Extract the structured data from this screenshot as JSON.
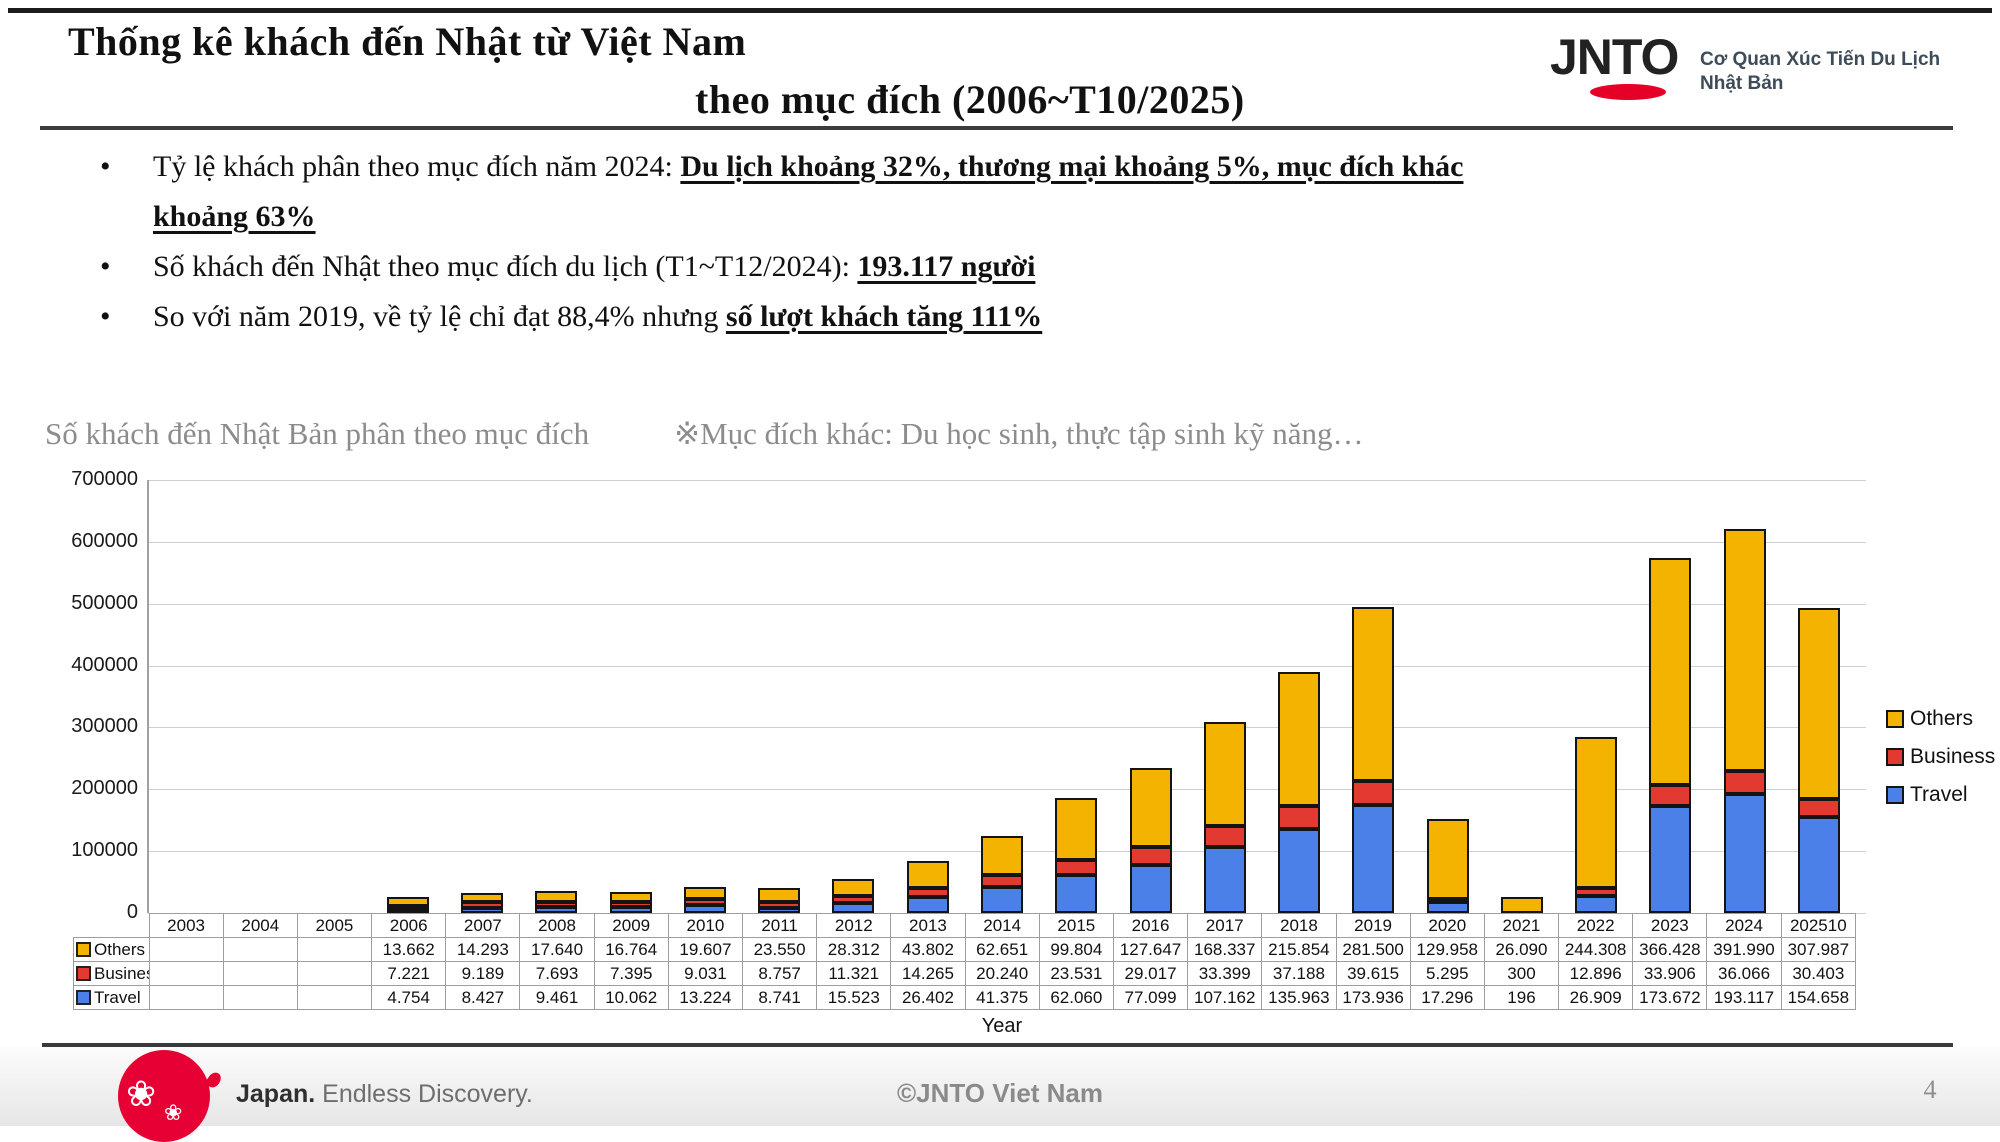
{
  "header": {
    "title_line1": "Thống kê khách đến Nhật từ Việt Nam",
    "title_line2": "theo mục đích (2006~T10/2025)",
    "logo_text": "JNTO",
    "logo_tagline": "Cơ Quan Xúc Tiến Du Lịch Nhật Bản"
  },
  "bullets": [
    {
      "segments": [
        {
          "text": "Tỷ lệ khách phân theo mục đích năm 2024: ",
          "style": "normal"
        },
        {
          "text": "Du lịch khoảng 32%, thương mại khoảng 5%, mục đích khác khoảng 63%",
          "style": "bold-underline"
        }
      ]
    },
    {
      "segments": [
        {
          "text": "Số khách đến Nhật theo mục đích du lịch (T1~T12/2024): ",
          "style": "normal"
        },
        {
          "text": "193.117 người",
          "style": "bold-underline"
        }
      ]
    },
    {
      "segments": [
        {
          "text": "So với năm 2019, về tỷ lệ chỉ đạt 88,4% nhưng ",
          "style": "normal"
        },
        {
          "text": "số lượt khách tăng 111%",
          "style": "bold-underline"
        }
      ]
    }
  ],
  "chart_data": {
    "type": "bar",
    "stacked": true,
    "title": "Số khách đến Nhật Bản phân theo mục đích",
    "note": "※Mục đích khác: Du học sinh, thực tập sinh kỹ năng…",
    "xlabel": "Year",
    "ylabel": "",
    "ylim": [
      0,
      700000
    ],
    "yticks": [
      "0",
      "100000",
      "200000",
      "300000",
      "400000",
      "500000",
      "600000",
      "700000"
    ],
    "grid": true,
    "legend_position": "right",
    "categories": [
      "2003",
      "2004",
      "2005",
      "2006",
      "2007",
      "2008",
      "2009",
      "2010",
      "2011",
      "2012",
      "2013",
      "2014",
      "2015",
      "2016",
      "2017",
      "2018",
      "2019",
      "2020",
      "2021",
      "2022",
      "2023",
      "2024",
      "202510"
    ],
    "series": [
      {
        "name": "Others",
        "color": "#F5B301",
        "values": [
          "",
          "",
          "",
          "13.662",
          "14.293",
          "17.640",
          "16.764",
          "19.607",
          "23.550",
          "28.312",
          "43.802",
          "62.651",
          "99.804",
          "127.647",
          "168.337",
          "215.854",
          "281.500",
          "129.958",
          "26.090",
          "244.308",
          "366.428",
          "391.990",
          "307.987"
        ]
      },
      {
        "name": "Business",
        "color": "#E23A30",
        "values": [
          "",
          "",
          "",
          "7.221",
          "9.189",
          "7.693",
          "7.395",
          "9.031",
          "8.757",
          "11.321",
          "14.265",
          "20.240",
          "23.531",
          "29.017",
          "33.399",
          "37.188",
          "39.615",
          "5.295",
          "300",
          "12.896",
          "33.906",
          "36.066",
          "30.403"
        ]
      },
      {
        "name": "Travel",
        "color": "#4B80E8",
        "values": [
          "",
          "",
          "",
          "4.754",
          "8.427",
          "9.461",
          "10.062",
          "13.224",
          "8.741",
          "15.523",
          "26.402",
          "41.375",
          "62.060",
          "77.099",
          "107.162",
          "135.963",
          "173.936",
          "17.296",
          "196",
          "26.909",
          "173.672",
          "193.117",
          "154.658"
        ]
      }
    ],
    "stack_order_bottom_to_top": [
      "Travel",
      "Business",
      "Others"
    ]
  },
  "footer": {
    "japan_bold": "Japan.",
    "japan_rest": " Endless Discovery.",
    "copyright": "©JNTO Viet Nam",
    "page_number": "4"
  }
}
